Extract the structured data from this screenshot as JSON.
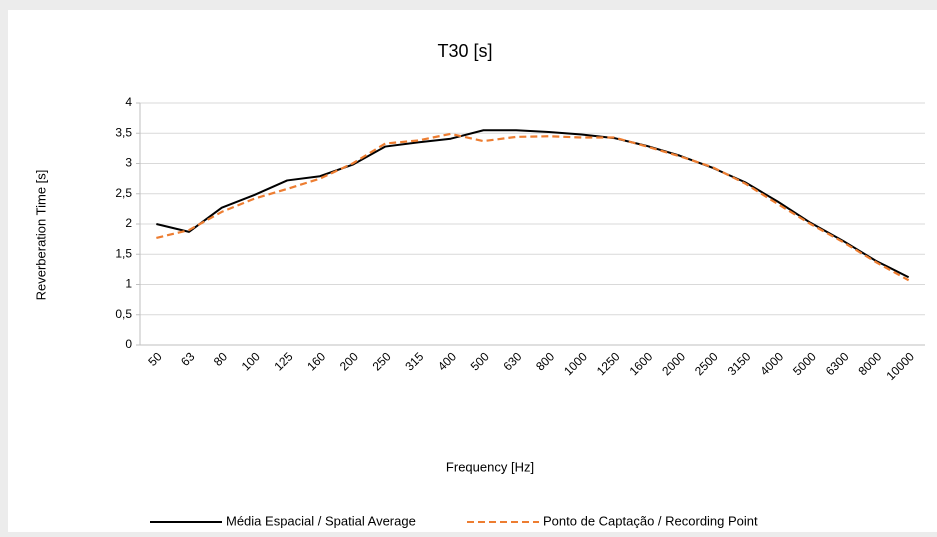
{
  "chart_data": {
    "type": "line",
    "title": "T30 [s]",
    "x_label": "Frequency [Hz]",
    "y_label": "Reverberation Time [s]",
    "categories": [
      "50",
      "63",
      "80",
      "100",
      "125",
      "160",
      "200",
      "250",
      "315",
      "400",
      "500",
      "630",
      "800",
      "1000",
      "1250",
      "1600",
      "2000",
      "2500",
      "3150",
      "4000",
      "5000",
      "6300",
      "8000",
      "10000"
    ],
    "series": [
      {
        "name": "Média Espacial / Spatial Average",
        "color": "#000000",
        "dash": false,
        "values": [
          2.0,
          1.87,
          2.27,
          2.48,
          2.72,
          2.79,
          2.98,
          3.28,
          3.35,
          3.41,
          3.55,
          3.55,
          3.52,
          3.48,
          3.42,
          3.29,
          3.13,
          2.93,
          2.69,
          2.37,
          2.02,
          1.72,
          1.39,
          1.12
        ]
      },
      {
        "name": "Ponto de Captação / Recording Point",
        "color": "#ed7d31",
        "dash": true,
        "values": [
          1.77,
          1.9,
          2.2,
          2.42,
          2.58,
          2.75,
          3.0,
          3.33,
          3.38,
          3.49,
          3.37,
          3.44,
          3.45,
          3.43,
          3.43,
          3.28,
          3.12,
          2.94,
          2.67,
          2.33,
          2.0,
          1.7,
          1.37,
          1.07
        ]
      }
    ],
    "ylim": [
      0,
      4
    ],
    "yticks": [
      0,
      {
        "value": 0.5,
        "label": "0,5"
      },
      1,
      {
        "value": 1.5,
        "label": "1,5"
      },
      2,
      {
        "value": 2.5,
        "label": "2,5"
      },
      3,
      {
        "value": 3.5,
        "label": "3,5"
      },
      4
    ],
    "grid": true,
    "legend": "bottom"
  }
}
